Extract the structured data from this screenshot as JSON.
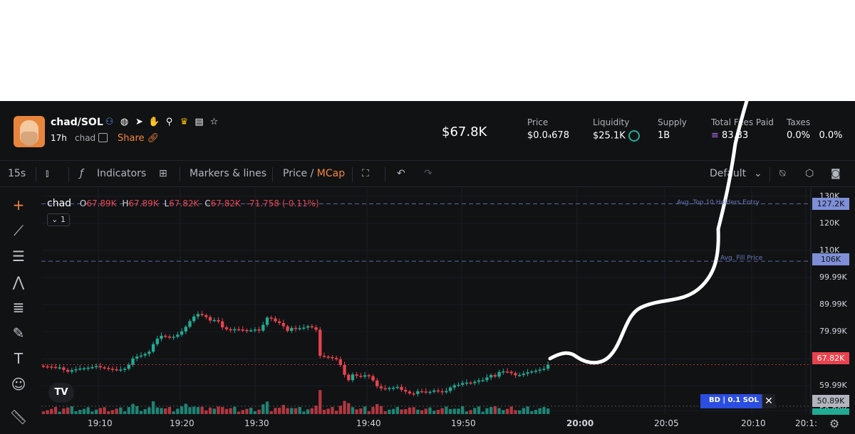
{
  "token": {
    "pair": "chad/SOL",
    "age": "17h",
    "ticker": "chad",
    "share_label": "Share"
  },
  "header": {
    "market_cap": "$67.8K",
    "stats": [
      {
        "label": "Price",
        "value": "$0.0₄678"
      },
      {
        "label": "Liquidity",
        "value": "$25.1K"
      },
      {
        "label": "Supply",
        "value": "1B"
      },
      {
        "label": "Total Fees Paid",
        "value": "83.33"
      },
      {
        "label": "Taxes",
        "value": "0.0%"
      }
    ],
    "taxes_value2": "0.0%",
    "icons": [
      "users-icon",
      "globe-icon",
      "telegram-icon",
      "hand-icon",
      "search-icon",
      "lion-icon",
      "document-icon",
      "star-icon"
    ]
  },
  "toolbar": {
    "interval": "15s",
    "indicators": "Indicators",
    "markers": "Markers & lines",
    "price": "Price",
    "slash": "/",
    "mcap": "MCap",
    "layout": "Default"
  },
  "legend": {
    "symbol": "chad",
    "o_key": "O",
    "o": "67.89K",
    "h_key": "H",
    "h": "67.89K",
    "l_key": "L",
    "l": "67.82K",
    "c_key": "C",
    "c": "67.82K",
    "change": "-71.758 (-0.11%)",
    "collapse": "⌄ 1"
  },
  "annotations": {
    "top10": "Avg. Top 10 Holders Entry",
    "fill": "Avg. Fill Price"
  },
  "price_axis": {
    "ticks": [
      "130K",
      "120K",
      "110K",
      "99.99K",
      "89.99K",
      "79.99K",
      "69.99K",
      "59.99K",
      "50.80K"
    ],
    "tag_top10": "127.2K",
    "tag_fill": "106K",
    "tag_last": "67.82K",
    "tag_low": "50.89K"
  },
  "time_axis": [
    "19:10",
    "19:20",
    "19:30",
    "19:40",
    "19:50",
    "20:00",
    "20:05",
    "20:10",
    "20:1:"
  ],
  "bd_tag": "BD | 0.1 SOL",
  "colors": {
    "up": "#22ab94",
    "down": "#e8434e",
    "accent": "#f5863b",
    "annotation": "#6b7ab8"
  },
  "chart_data": {
    "type": "candlestick",
    "interval": "15s",
    "last_close": 67.82,
    "y_unit": "K USD",
    "ylim": [
      48,
      131
    ],
    "closes": [
      67.2,
      67.1,
      67.0,
      66.7,
      66.8,
      65.9,
      65.2,
      65.8,
      66.1,
      66.4,
      66.5,
      66.7,
      66.9,
      67.3,
      66.8,
      66.6,
      66.3,
      66.1,
      65.9,
      66.0,
      66.3,
      67.8,
      70.1,
      70.8,
      71.2,
      71.8,
      72.6,
      75.4,
      77.4,
      78.5,
      78.2,
      77.9,
      78.1,
      78.9,
      80.1,
      81.8,
      83.9,
      85.6,
      86.5,
      86.1,
      85.4,
      84.1,
      84.3,
      83.8,
      81.6,
      80.9,
      80.5,
      80.9,
      80.8,
      80.6,
      80.5,
      80.5,
      80.8,
      80.4,
      82.5,
      85.2,
      84.9,
      83.8,
      83.2,
      82.0,
      80.3,
      81.4,
      81.0,
      81.3,
      81.5,
      82.0,
      81.6,
      80.7,
      71.1,
      70.8,
      70.6,
      70.3,
      69.8,
      67.7,
      64.1,
      62.1,
      64.2,
      63.7,
      63.4,
      63.9,
      63.6,
      62.0,
      59.8,
      59.1,
      58.8,
      59.2,
      59.3,
      59.6,
      58.5,
      57.9,
      57.2,
      57.0,
      58.0,
      57.9,
      57.7,
      57.8,
      58.3,
      58.0,
      57.6,
      58.1,
      59.4,
      60.2,
      60.4,
      61.0,
      61.2,
      61.0,
      61.5,
      62.0,
      62.1,
      63.1,
      64.0,
      63.4,
      65.1,
      65.3,
      65.2,
      64.7,
      63.9,
      64.0,
      64.5,
      65.0,
      65.3,
      65.6,
      66.0,
      66.3,
      67.82
    ],
    "volume_note": "volume histogram bars under price"
  }
}
